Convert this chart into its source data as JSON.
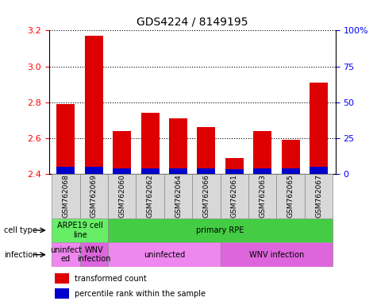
{
  "title": "GDS4224 / 8149195",
  "samples": [
    "GSM762068",
    "GSM762069",
    "GSM762060",
    "GSM762062",
    "GSM762064",
    "GSM762066",
    "GSM762061",
    "GSM762063",
    "GSM762065",
    "GSM762067"
  ],
  "transformed_count": [
    2.79,
    3.17,
    2.64,
    2.74,
    2.71,
    2.66,
    2.49,
    2.64,
    2.59,
    2.91
  ],
  "percentile_rank": [
    5,
    5,
    4,
    4,
    4,
    4,
    3,
    4,
    4,
    5
  ],
  "ylim_left": [
    2.4,
    3.2
  ],
  "ylim_right": [
    0,
    100
  ],
  "yticks_left": [
    2.4,
    2.6,
    2.8,
    3.0,
    3.2
  ],
  "yticks_right": [
    0,
    25,
    50,
    75,
    100
  ],
  "ytick_labels_right": [
    "0",
    "25",
    "50",
    "75",
    "100%"
  ],
  "bar_color_red": "#dd0000",
  "bar_color_blue": "#0000cc",
  "baseline": 2.4,
  "cell_type_labels": [
    {
      "text": "ARPE19 cell\nline",
      "start": 0,
      "end": 2,
      "color": "#66ee66"
    },
    {
      "text": "primary RPE",
      "start": 2,
      "end": 10,
      "color": "#44cc44"
    }
  ],
  "infection_labels": [
    {
      "text": "uninfect\ned",
      "start": 0,
      "end": 1,
      "color": "#ee88ee"
    },
    {
      "text": "WNV\ninfection",
      "start": 1,
      "end": 2,
      "color": "#dd66dd"
    },
    {
      "text": "uninfected",
      "start": 2,
      "end": 6,
      "color": "#ee88ee"
    },
    {
      "text": "WNV infection",
      "start": 6,
      "end": 10,
      "color": "#dd66dd"
    }
  ],
  "legend_red": "transformed count",
  "legend_blue": "percentile rank within the sample",
  "cell_type_row_label": "cell type",
  "infection_row_label": "infection"
}
